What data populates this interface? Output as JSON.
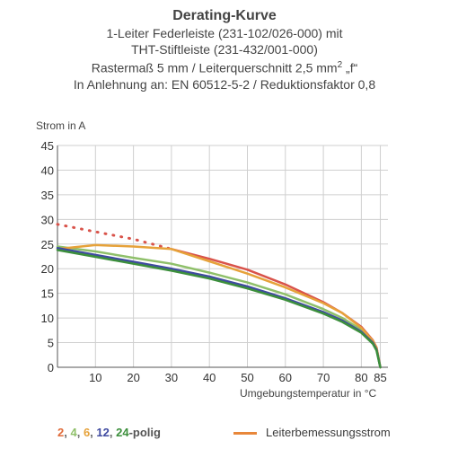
{
  "header": {
    "title": "Derating-Kurve",
    "line1": "1-Leiter Federleiste (231-102/026-000) mit",
    "line2": "THT-Stiftleiste (231-432/001-000)",
    "line3_a": "Rastermaß 5 mm / Leiterquerschnitt 2,5 mm",
    "line3_sup": "2",
    "line3_b": " „f“",
    "line4": "In Anlehnung an: EN 60512-5-2 / Reduktionsfaktor 0,8"
  },
  "legend": {
    "poles": [
      {
        "text": "2",
        "color": "#e06b3a"
      },
      {
        "text": ", ",
        "color": "#666666"
      },
      {
        "text": "4",
        "color": "#8fc06a"
      },
      {
        "text": ", ",
        "color": "#666666"
      },
      {
        "text": "6",
        "color": "#e6a23a"
      },
      {
        "text": ", ",
        "color": "#666666"
      },
      {
        "text": "12",
        "color": "#3f4aa0"
      },
      {
        "text": ", ",
        "color": "#666666"
      },
      {
        "text": "24",
        "color": "#3c8f3c"
      },
      {
        "text": "-polig",
        "color": "#555555"
      }
    ],
    "rated_label": "Leiterbemessungsstrom",
    "rated_color": "#e8873a"
  },
  "chart_data": {
    "type": "line",
    "title": "Derating-Kurve",
    "xlabel": "Umgebungstemperatur in °C",
    "ylabel": "Strom in A",
    "xlim": [
      0,
      87
    ],
    "ylim": [
      0,
      45
    ],
    "xticks": [
      10,
      20,
      30,
      40,
      50,
      60,
      70,
      80,
      85
    ],
    "yticks": [
      0,
      5,
      10,
      15,
      20,
      25,
      30,
      35,
      40,
      45
    ],
    "grid": true,
    "series": [
      {
        "name": "2",
        "color": "#d9534a",
        "style": "solid",
        "x": [
          30,
          40,
          50,
          60,
          70,
          75,
          80,
          83,
          84,
          85
        ],
        "y": [
          24,
          22,
          19.8,
          16.8,
          13.2,
          11,
          8.2,
          5.5,
          4,
          0
        ]
      },
      {
        "name": "2",
        "color": "#d9534a",
        "style": "dotted",
        "x": [
          0,
          10,
          20,
          30
        ],
        "y": [
          29,
          27.5,
          26,
          24
        ]
      },
      {
        "name": "4",
        "color": "#8fc06a",
        "style": "solid",
        "x": [
          0,
          10,
          20,
          30,
          40,
          50,
          60,
          70,
          75,
          80,
          83,
          84,
          85
        ],
        "y": [
          24.5,
          23.5,
          22.2,
          21,
          19.2,
          17.2,
          14.8,
          11.8,
          10,
          7.6,
          5.2,
          3.8,
          0
        ]
      },
      {
        "name": "6",
        "color": "#e6a23a",
        "style": "solid",
        "x": [
          0,
          10,
          20,
          30,
          40,
          50,
          60,
          70,
          75,
          80,
          83,
          84,
          85
        ],
        "y": [
          24,
          24.8,
          24.5,
          24,
          21.5,
          19,
          16.2,
          13,
          11,
          8,
          5.4,
          4,
          0
        ]
      },
      {
        "name": "12",
        "color": "#3f4aa0",
        "style": "solid",
        "x": [
          0,
          10,
          20,
          30,
          40,
          50,
          60,
          70,
          75,
          80,
          83,
          84,
          85
        ],
        "y": [
          24.2,
          22.8,
          21.4,
          20,
          18.4,
          16.4,
          14,
          11.2,
          9.5,
          7.2,
          5,
          3.6,
          0
        ]
      },
      {
        "name": "24",
        "color": "#3c8f3c",
        "style": "solid",
        "x": [
          0,
          10,
          20,
          30,
          40,
          50,
          60,
          70,
          75,
          80,
          83,
          84,
          85
        ],
        "y": [
          23.8,
          22.4,
          21,
          19.6,
          18,
          16,
          13.7,
          10.9,
          9.2,
          7,
          4.8,
          3.4,
          0
        ]
      }
    ]
  }
}
